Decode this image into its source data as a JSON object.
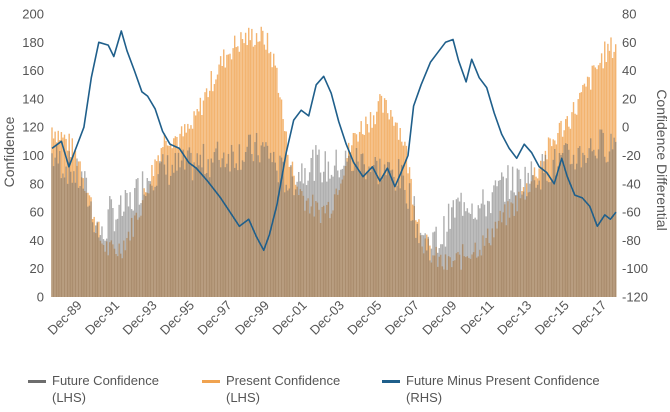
{
  "chart_data": {
    "type": "bar+line",
    "title": "",
    "ylabel_left": "Confidence",
    "ylabel_right": "Confidence Differential",
    "ylim_left": [
      0,
      200
    ],
    "ylim_right": [
      -120,
      80
    ],
    "yticks_left": [
      "0",
      "20",
      "40",
      "60",
      "80",
      "100",
      "120",
      "140",
      "160",
      "180",
      "200"
    ],
    "yticks_right": [
      "-120",
      "-100",
      "-80",
      "-60",
      "-40",
      "-20",
      "0",
      "20",
      "40",
      "60",
      "80"
    ],
    "x_start": 1988.5,
    "x_end": 2018.6,
    "x_tick_labels": [
      "Dec-89",
      "Dec-91",
      "Dec-93",
      "Dec-95",
      "Dec-97",
      "Dec-99",
      "Dec-01",
      "Dec-03",
      "Dec-05",
      "Dec-07",
      "Dec-09",
      "Dec-11",
      "Dec-13",
      "Dec-15",
      "Dec-17"
    ],
    "x_tick_years": [
      1989.92,
      1991.92,
      1993.92,
      1995.92,
      1997.92,
      1999.92,
      2001.92,
      2003.92,
      2005.92,
      2007.92,
      2009.92,
      2011.92,
      2013.92,
      2015.92,
      2017.92
    ],
    "series": [
      {
        "name": "Future Confidence (LHS)",
        "axis": "left",
        "kind": "bar",
        "color": "#6d6d6d",
        "points": [
          [
            1988.5,
            100
          ],
          [
            1989.5,
            90
          ],
          [
            1990.2,
            80
          ],
          [
            1990.9,
            50
          ],
          [
            1991.2,
            40
          ],
          [
            1991.6,
            60
          ],
          [
            1992.0,
            58
          ],
          [
            1992.6,
            65
          ],
          [
            1993.2,
            78
          ],
          [
            1993.8,
            88
          ],
          [
            1994.5,
            90
          ],
          [
            1995.5,
            92
          ],
          [
            1996.5,
            95
          ],
          [
            1997.5,
            100
          ],
          [
            1998.5,
            102
          ],
          [
            1999.5,
            104
          ],
          [
            2000.0,
            104
          ],
          [
            2000.6,
            90
          ],
          [
            2001.2,
            80
          ],
          [
            2001.8,
            90
          ],
          [
            2002.5,
            95
          ],
          [
            2003.3,
            90
          ],
          [
            2004.0,
            95
          ],
          [
            2005.0,
            96
          ],
          [
            2006.0,
            90
          ],
          [
            2007.0,
            85
          ],
          [
            2007.5,
            75
          ],
          [
            2008.0,
            50
          ],
          [
            2008.5,
            38
          ],
          [
            2009.2,
            40
          ],
          [
            2009.9,
            60
          ],
          [
            2010.6,
            70
          ],
          [
            2011.3,
            62
          ],
          [
            2012.0,
            70
          ],
          [
            2012.6,
            80
          ],
          [
            2013.4,
            82
          ],
          [
            2014.2,
            86
          ],
          [
            2015.0,
            92
          ],
          [
            2015.8,
            96
          ],
          [
            2016.6,
            100
          ],
          [
            2017.4,
            106
          ],
          [
            2018.2,
            108
          ],
          [
            2018.6,
            110
          ]
        ]
      },
      {
        "name": "Present Confidence (LHS)",
        "axis": "left",
        "kind": "bar",
        "color": "#f0a350",
        "points": [
          [
            1988.5,
            120
          ],
          [
            1989.3,
            110
          ],
          [
            1990.0,
            95
          ],
          [
            1990.6,
            65
          ],
          [
            1991.1,
            40
          ],
          [
            1991.6,
            32
          ],
          [
            1992.2,
            35
          ],
          [
            1992.8,
            50
          ],
          [
            1993.4,
            70
          ],
          [
            1994.0,
            95
          ],
          [
            1994.6,
            115
          ],
          [
            1995.3,
            112
          ],
          [
            1996.0,
            120
          ],
          [
            1996.6,
            140
          ],
          [
            1997.3,
            160
          ],
          [
            1998.0,
            175
          ],
          [
            1998.7,
            182
          ],
          [
            1999.4,
            185
          ],
          [
            1999.9,
            182
          ],
          [
            2000.5,
            160
          ],
          [
            2001.0,
            110
          ],
          [
            2001.5,
            80
          ],
          [
            2002.0,
            70
          ],
          [
            2002.7,
            60
          ],
          [
            2003.4,
            65
          ],
          [
            2004.0,
            90
          ],
          [
            2004.7,
            115
          ],
          [
            2005.4,
            125
          ],
          [
            2006.0,
            135
          ],
          [
            2006.7,
            130
          ],
          [
            2007.3,
            110
          ],
          [
            2007.8,
            70
          ],
          [
            2008.3,
            40
          ],
          [
            2008.9,
            28
          ],
          [
            2009.5,
            22
          ],
          [
            2010.2,
            26
          ],
          [
            2010.9,
            34
          ],
          [
            2011.6,
            38
          ],
          [
            2012.3,
            52
          ],
          [
            2012.9,
            60
          ],
          [
            2013.6,
            72
          ],
          [
            2014.3,
            88
          ],
          [
            2014.9,
            102
          ],
          [
            2015.6,
            118
          ],
          [
            2016.2,
            128
          ],
          [
            2016.9,
            145
          ],
          [
            2017.5,
            160
          ],
          [
            2018.0,
            172
          ],
          [
            2018.6,
            178
          ]
        ]
      },
      {
        "name": "Future Minus Present Confidence (RHS)",
        "axis": "right",
        "kind": "line",
        "color": "#1f5f8b",
        "points": [
          [
            1988.5,
            -15
          ],
          [
            1989.0,
            -10
          ],
          [
            1989.4,
            -28
          ],
          [
            1989.8,
            -14
          ],
          [
            1990.2,
            0
          ],
          [
            1990.6,
            35
          ],
          [
            1991.0,
            60
          ],
          [
            1991.5,
            58
          ],
          [
            1991.8,
            50
          ],
          [
            1992.2,
            68
          ],
          [
            1992.5,
            54
          ],
          [
            1992.9,
            40
          ],
          [
            1993.3,
            25
          ],
          [
            1993.6,
            22
          ],
          [
            1994.0,
            13
          ],
          [
            1994.4,
            -3
          ],
          [
            1994.8,
            -12
          ],
          [
            1995.3,
            -15
          ],
          [
            1995.8,
            -25
          ],
          [
            1996.2,
            -29
          ],
          [
            1996.8,
            -38
          ],
          [
            1997.5,
            -50
          ],
          [
            1998.0,
            -60
          ],
          [
            1998.5,
            -70
          ],
          [
            1999.0,
            -65
          ],
          [
            1999.4,
            -77
          ],
          [
            1999.8,
            -87
          ],
          [
            2000.1,
            -76
          ],
          [
            2000.5,
            -55
          ],
          [
            2001.0,
            -18
          ],
          [
            2001.4,
            5
          ],
          [
            2001.8,
            12
          ],
          [
            2002.2,
            8
          ],
          [
            2002.6,
            30
          ],
          [
            2003.0,
            36
          ],
          [
            2003.4,
            24
          ],
          [
            2003.8,
            4
          ],
          [
            2004.2,
            -12
          ],
          [
            2004.6,
            -25
          ],
          [
            2005.1,
            -35
          ],
          [
            2005.6,
            -28
          ],
          [
            2006.0,
            -38
          ],
          [
            2006.4,
            -29
          ],
          [
            2006.8,
            -42
          ],
          [
            2007.1,
            -33
          ],
          [
            2007.5,
            -20
          ],
          [
            2007.8,
            15
          ],
          [
            2008.2,
            30
          ],
          [
            2008.7,
            46
          ],
          [
            2009.1,
            53
          ],
          [
            2009.5,
            60
          ],
          [
            2009.9,
            62
          ],
          [
            2010.2,
            47
          ],
          [
            2010.6,
            32
          ],
          [
            2010.9,
            48
          ],
          [
            2011.3,
            35
          ],
          [
            2011.7,
            28
          ],
          [
            2012.1,
            10
          ],
          [
            2012.5,
            -5
          ],
          [
            2012.9,
            -15
          ],
          [
            2013.3,
            -22
          ],
          [
            2013.7,
            -12
          ],
          [
            2014.1,
            -18
          ],
          [
            2014.5,
            -28
          ],
          [
            2014.9,
            -32
          ],
          [
            2015.3,
            -40
          ],
          [
            2015.7,
            -22
          ],
          [
            2016.0,
            -35
          ],
          [
            2016.4,
            -48
          ],
          [
            2016.8,
            -50
          ],
          [
            2017.2,
            -56
          ],
          [
            2017.6,
            -70
          ],
          [
            2018.0,
            -62
          ],
          [
            2018.3,
            -65
          ],
          [
            2018.6,
            -60
          ]
        ]
      }
    ],
    "legend_position": "bottom"
  },
  "legend": {
    "items": [
      {
        "line1": "Future Confidence",
        "line2": "(LHS)",
        "color": "#6d6d6d"
      },
      {
        "line1": "Present Confidence",
        "line2": "(LHS)",
        "color": "#f0a350"
      },
      {
        "line1": "Future Minus Present Confidence",
        "line2": "(RHS)",
        "color": "#1f5f8b"
      }
    ]
  }
}
